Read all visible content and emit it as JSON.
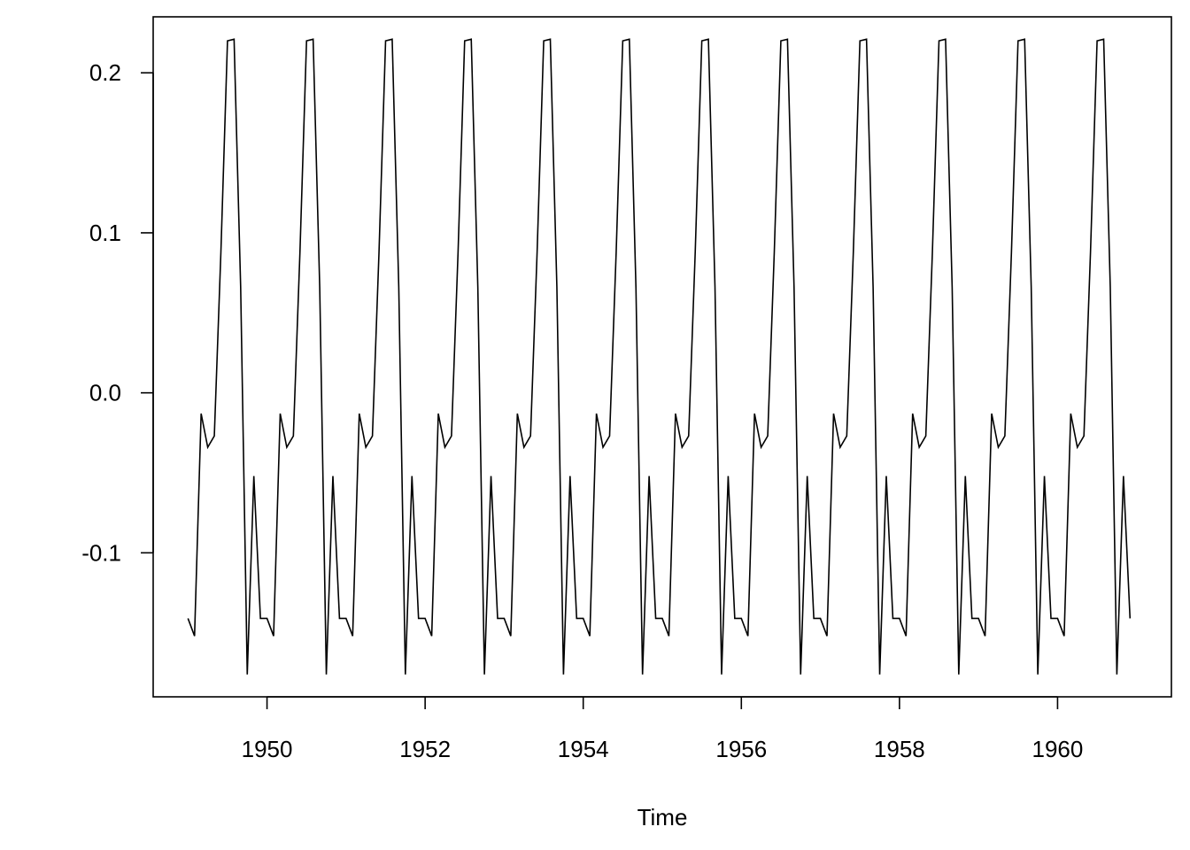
{
  "chart_data": {
    "type": "line",
    "title": "",
    "xlabel": "Time",
    "ylabel": "",
    "xlim": [
      1948.56,
      1961.44
    ],
    "ylim": [
      -0.19,
      0.235
    ],
    "x_ticks": [
      1950,
      1952,
      1954,
      1956,
      1958,
      1960
    ],
    "x_tick_labels": [
      "1950",
      "1952",
      "1954",
      "1956",
      "1958",
      "1960"
    ],
    "y_ticks": [
      -0.1,
      0.0,
      0.1,
      0.2
    ],
    "y_tick_labels": [
      "-0.1",
      "0.0",
      "0.1",
      "0.2"
    ],
    "grid": false,
    "legend": "none",
    "series": [
      {
        "start": 1949.0,
        "frequency": 12,
        "seasonal_pattern": [
          -0.141,
          -0.152,
          -0.013,
          -0.034,
          -0.027,
          0.088,
          0.22,
          0.221,
          0.066,
          -0.176,
          -0.052,
          -0.141
        ],
        "cycles": 12,
        "color": "#000000"
      }
    ]
  }
}
